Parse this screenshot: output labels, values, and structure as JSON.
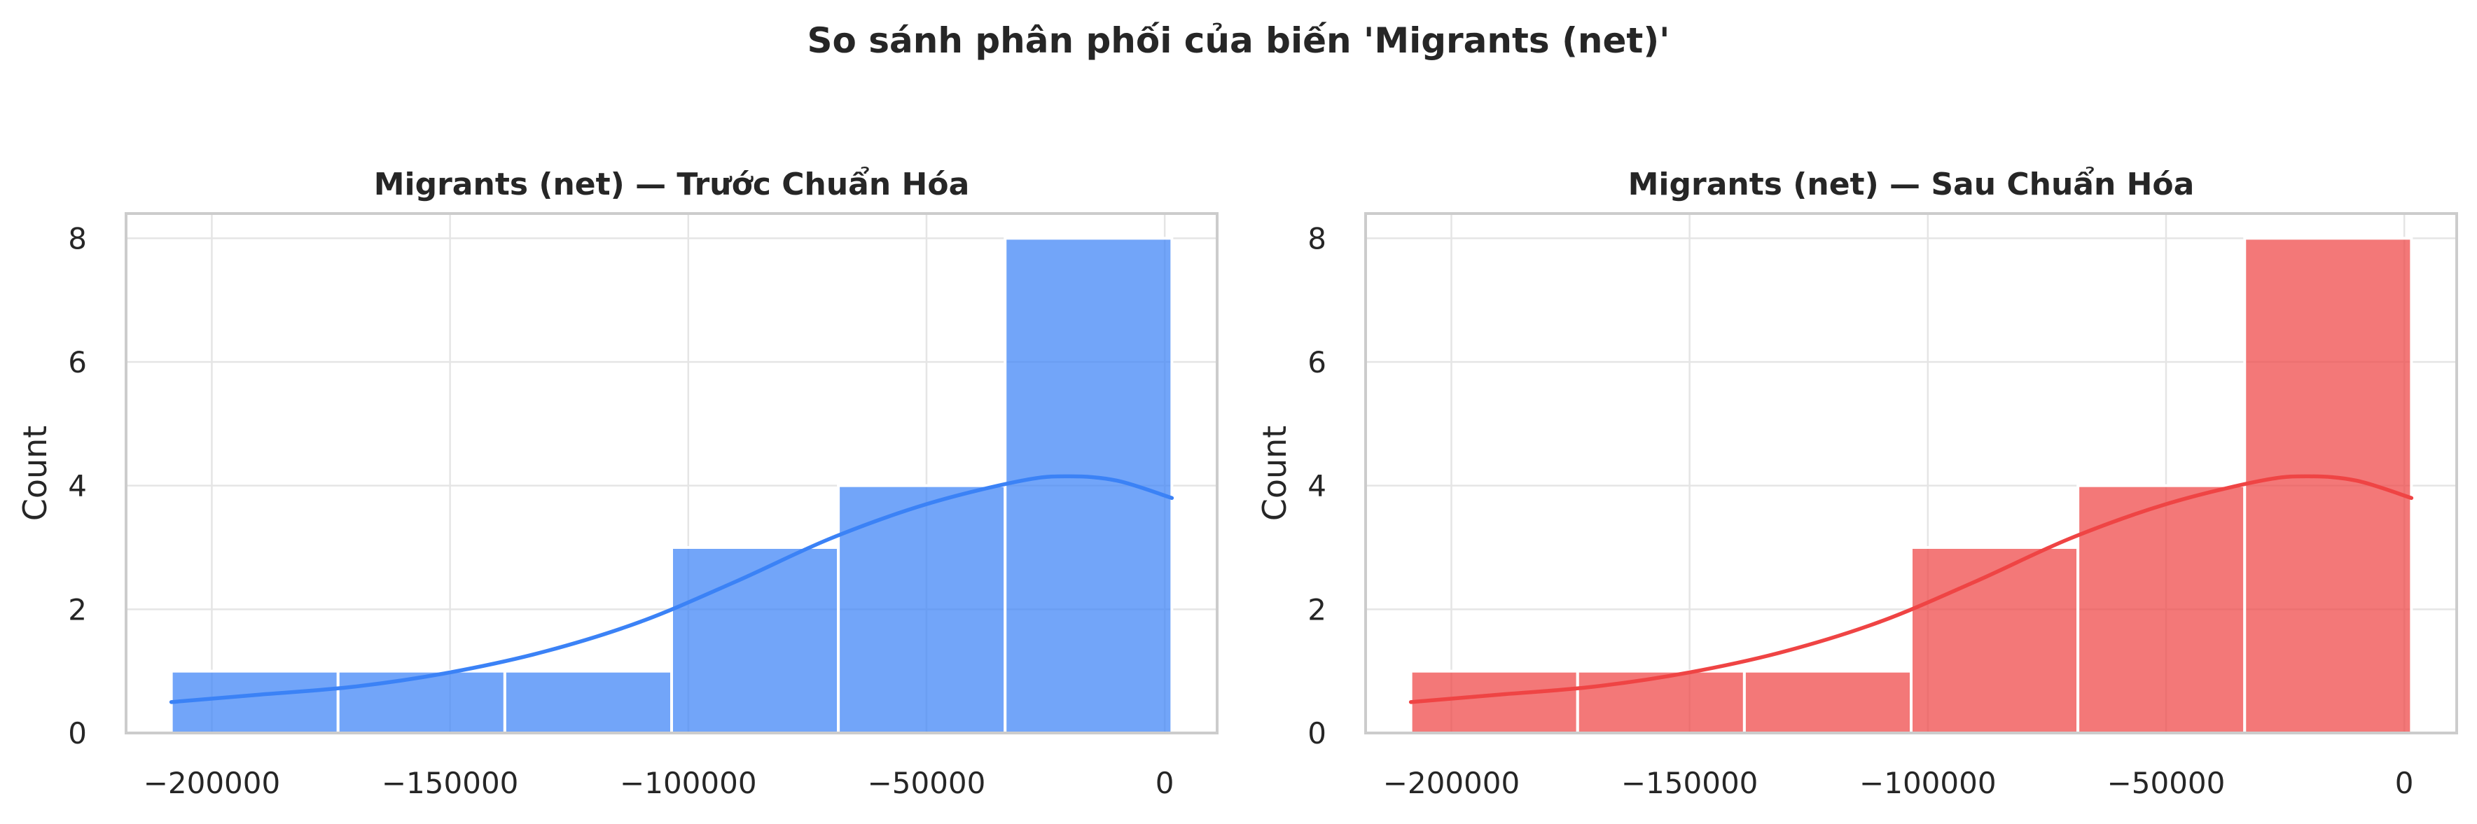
{
  "suptitle": "So sánh phân phối của biến 'Migrants (net)'",
  "chart_data": [
    {
      "type": "bar",
      "subtype": "histogram-with-kde",
      "title": "Migrants (net) — Trước Chuẩn Hóa",
      "xlabel": "",
      "ylabel": "Count",
      "color": "#3b82f6",
      "bin_edges": [
        -208500,
        -173500,
        -138500,
        -103500,
        -68500,
        -33500,
        1500
      ],
      "counts": [
        1,
        1,
        1,
        3,
        4,
        8
      ],
      "kde": {
        "x": [
          -208500,
          -190000,
          -170000,
          -150000,
          -130000,
          -110000,
          -90000,
          -70000,
          -50000,
          -30000,
          -20000,
          -10000,
          1500
        ],
        "y": [
          0.5,
          0.62,
          0.75,
          0.98,
          1.32,
          1.8,
          2.45,
          3.15,
          3.7,
          4.08,
          4.15,
          4.08,
          3.8
        ]
      },
      "xlim": [
        -218000,
        11000
      ],
      "ylim": [
        0,
        8.4
      ],
      "xticks": [
        -200000,
        -150000,
        -100000,
        -50000,
        0
      ],
      "xtick_labels": [
        "−200000",
        "−150000",
        "−100000",
        "−50000",
        "0"
      ],
      "yticks": [
        0,
        2,
        4,
        6,
        8
      ],
      "ytick_labels": [
        "0",
        "2",
        "4",
        "6",
        "8"
      ],
      "grid": true
    },
    {
      "type": "bar",
      "subtype": "histogram-with-kde",
      "title": "Migrants (net) — Sau Chuẩn Hóa",
      "xlabel": "",
      "ylabel": "Count",
      "color": "#ef4444",
      "bin_edges": [
        -208500,
        -173500,
        -138500,
        -103500,
        -68500,
        -33500,
        1500
      ],
      "counts": [
        1,
        1,
        1,
        3,
        4,
        8
      ],
      "kde": {
        "x": [
          -208500,
          -190000,
          -170000,
          -150000,
          -130000,
          -110000,
          -90000,
          -70000,
          -50000,
          -30000,
          -20000,
          -10000,
          1500
        ],
        "y": [
          0.5,
          0.62,
          0.75,
          0.98,
          1.32,
          1.8,
          2.45,
          3.15,
          3.7,
          4.08,
          4.15,
          4.08,
          3.8
        ]
      },
      "xlim": [
        -218000,
        11000
      ],
      "ylim": [
        0,
        8.4
      ],
      "xticks": [
        -200000,
        -150000,
        -100000,
        -50000,
        0
      ],
      "xtick_labels": [
        "−200000",
        "−150000",
        "−100000",
        "−50000",
        "0"
      ],
      "yticks": [
        0,
        2,
        4,
        6,
        8
      ],
      "ytick_labels": [
        "0",
        "2",
        "4",
        "6",
        "8"
      ],
      "grid": true
    }
  ]
}
